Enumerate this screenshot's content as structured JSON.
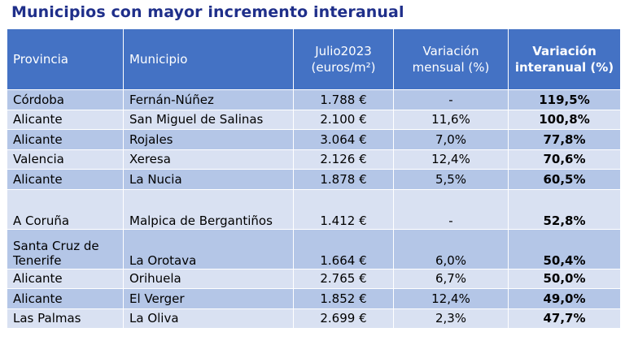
{
  "title": "Municipios con mayor incremento interanual",
  "headers": {
    "provincia": "Provincia",
    "municipio": "Municipio",
    "julio": "Julio2023 (euros/m²)",
    "mensual": "Variación mensual (%)",
    "interanual": "Variación interanual (%)"
  },
  "rows": [
    {
      "provincia": "Córdoba",
      "municipio": "Fernán-Núñez",
      "precio": "1.788 €",
      "mensual": "-",
      "interanual": "119,5%"
    },
    {
      "provincia": "Alicante",
      "municipio": "San Miguel de Salinas",
      "precio": "2.100 €",
      "mensual": "11,6%",
      "interanual": "100,8%"
    },
    {
      "provincia": "Alicante",
      "municipio": "Rojales",
      "precio": "3.064 €",
      "mensual": "7,0%",
      "interanual": "77,8%"
    },
    {
      "provincia": "Valencia",
      "municipio": "Xeresa",
      "precio": "2.126 €",
      "mensual": "12,4%",
      "interanual": "70,6%"
    },
    {
      "provincia": "Alicante",
      "municipio": "La Nucia",
      "precio": "1.878 €",
      "mensual": "5,5%",
      "interanual": "60,5%"
    },
    {
      "provincia": "A Coruña",
      "municipio": "Malpica de Bergantiños",
      "precio": "1.412 €",
      "mensual": "-",
      "interanual": "52,8%"
    },
    {
      "provincia": "Santa Cruz de Tenerife",
      "municipio": "La Orotava",
      "precio": "1.664 €",
      "mensual": "6,0%",
      "interanual": "50,4%"
    },
    {
      "provincia": "Alicante",
      "municipio": "Orihuela",
      "precio": "2.765 €",
      "mensual": "6,7%",
      "interanual": "50,0%"
    },
    {
      "provincia": "Alicante",
      "municipio": "El Verger",
      "precio": "1.852 €",
      "mensual": "12,4%",
      "interanual": "49,0%"
    },
    {
      "provincia": "Las Palmas",
      "municipio": "La Oliva",
      "precio": "2.699 €",
      "mensual": "2,3%",
      "interanual": "47,7%"
    }
  ]
}
